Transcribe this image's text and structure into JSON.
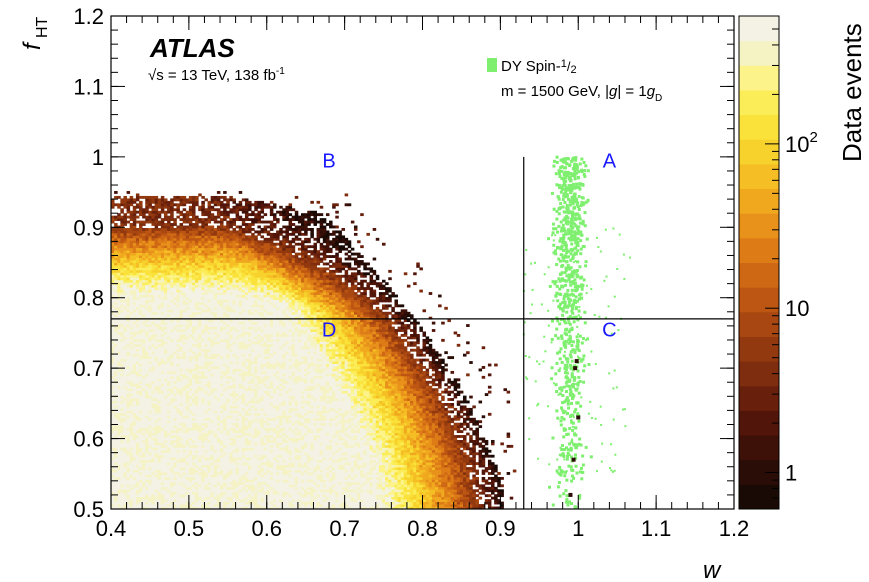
{
  "colors": {
    "signal": "#7fef6f",
    "line": "#000000",
    "region_text": "#1a1aff",
    "colormap": [
      "#1a0a05",
      "#2b0d07",
      "#3d1008",
      "#52150a",
      "#68200c",
      "#7e2d0e",
      "#93390f",
      "#a84711",
      "#bd5612",
      "#cf6814",
      "#dd7c17",
      "#e8921b",
      "#f0a81f",
      "#f5be24",
      "#f8d22c",
      "#fae23a",
      "#fbed58",
      "#fcf38a",
      "#f5f2c4",
      "#f3f2e4"
    ]
  },
  "annotations": {
    "experiment": "ATLAS",
    "energy_sqrt": "√s",
    "energy_rest": " = 13 TeV, 138 fb",
    "lumi_sup": "-1",
    "legend_label": "DY Spin-",
    "legend_frac_num": "1",
    "legend_frac_den": "2",
    "mass_text": "m = 1500 GeV, |",
    "mass_g": "g",
    "mass_eq": "| = 1",
    "mass_gd": "g",
    "mass_sub": "D"
  },
  "chart_data": {
    "type": "heatmap",
    "xlabel": "w",
    "ylabel_main": "f",
    "ylabel_sub": "HT",
    "xlim": [
      0.4,
      1.2
    ],
    "ylim": [
      0.5,
      1.2
    ],
    "xticks": [
      0.4,
      0.5,
      0.6,
      0.7,
      0.8,
      0.9,
      1,
      1.1,
      1.2
    ],
    "xtick_labels": [
      "0.4",
      "0.5",
      "0.6",
      "0.7",
      "0.8",
      "0.9",
      "1",
      "1.1",
      "1.2"
    ],
    "yticks": [
      0.5,
      0.6,
      0.7,
      0.8,
      0.9,
      1,
      1.1,
      1.2
    ],
    "ytick_labels": [
      "0.5",
      "0.6",
      "0.7",
      "0.8",
      "0.9",
      "1",
      "1.1",
      "1.2"
    ],
    "colorbar": {
      "label": "Data events",
      "scale": "log",
      "range": [
        0.6,
        600
      ],
      "tick_labels": [
        {
          "value": 1,
          "text": "1"
        },
        {
          "value": 10,
          "text": "10"
        },
        {
          "value": 100,
          "text": "10",
          "sup": "2"
        }
      ]
    },
    "cut_lines": {
      "w": 0.93,
      "f_HT": 0.77
    },
    "regions": [
      {
        "name": "A",
        "x": 1.04,
        "y": 0.985
      },
      {
        "name": "B",
        "x": 0.68,
        "y": 0.985
      },
      {
        "name": "C",
        "x": 1.04,
        "y": 0.745
      },
      {
        "name": "D",
        "x": 0.68,
        "y": 0.745
      }
    ],
    "series": [
      {
        "name": "Data",
        "kind": "2D histogram of data events, dense for w < 0.9 and f_HT < 0.9"
      },
      {
        "name": "DY Spin-1/2",
        "kind": "signal scatter concentrated near w = 1 spanning f_HT 0.5 to 1.0"
      }
    ]
  }
}
